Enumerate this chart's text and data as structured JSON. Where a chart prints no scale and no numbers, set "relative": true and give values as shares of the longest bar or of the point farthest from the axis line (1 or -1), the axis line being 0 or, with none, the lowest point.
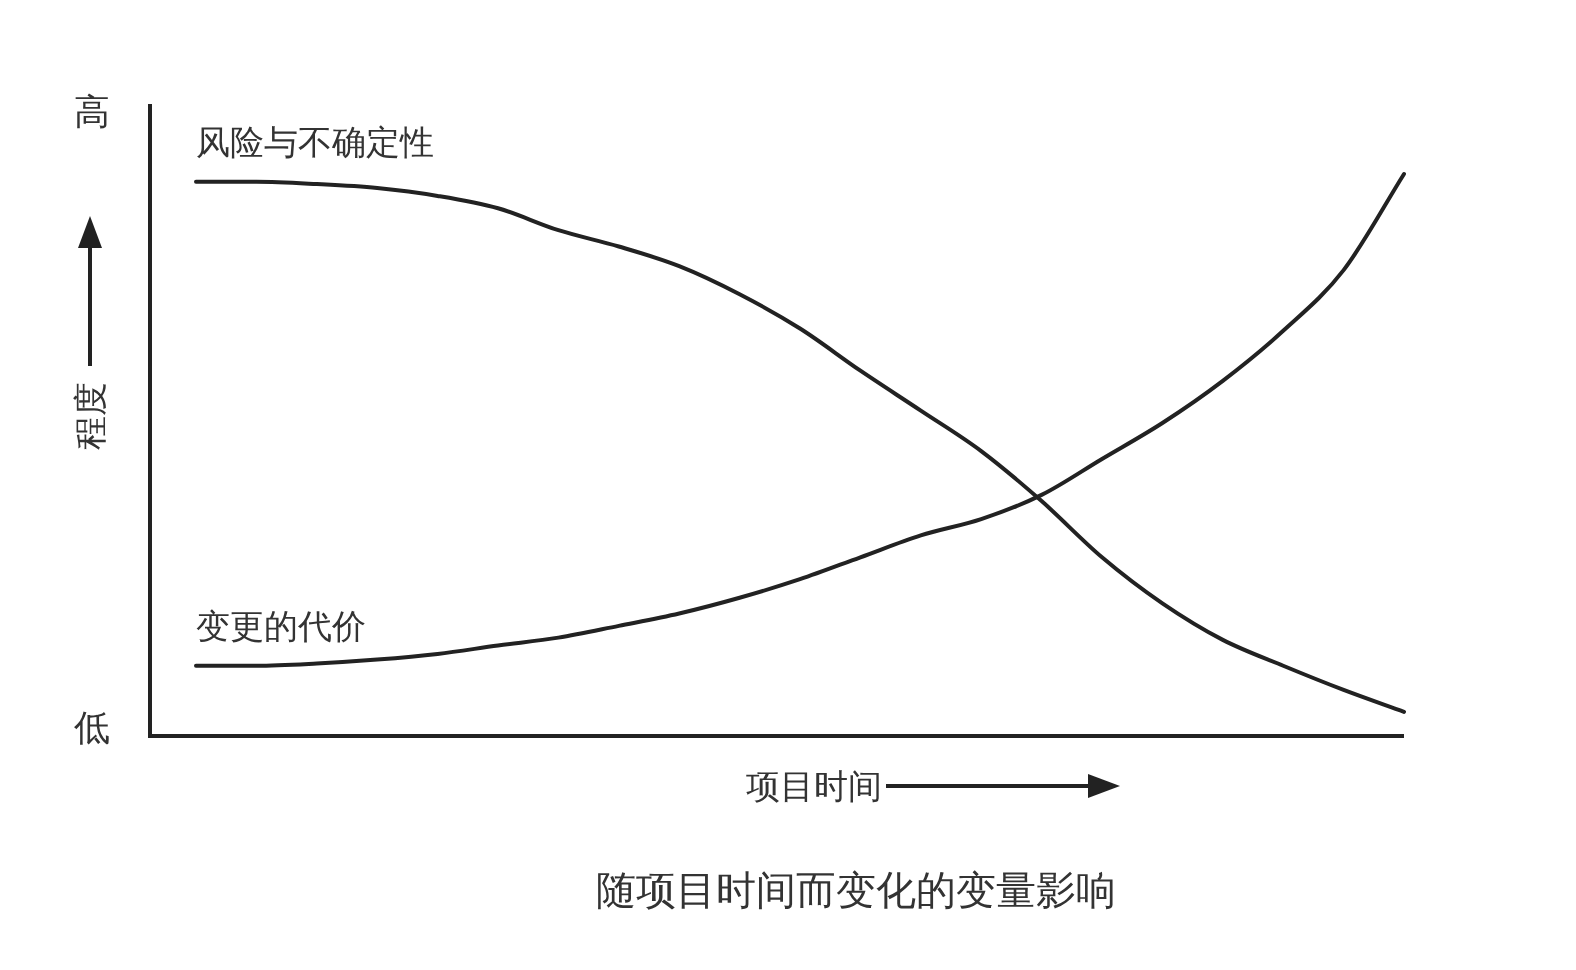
{
  "chart_data": {
    "type": "line",
    "title": "随项目时间而变化的变量影响",
    "xlabel": "项目时间",
    "ylabel": "程度",
    "annotations": [
      "高",
      "低"
    ],
    "relative": true,
    "categories": [
      null,
      null,
      null,
      null,
      null,
      null,
      null,
      null,
      null,
      null,
      null,
      null,
      null,
      null,
      null,
      null,
      null,
      null,
      null,
      null,
      null
    ],
    "series": [
      {
        "name": "风险与不确定性",
        "color": "#222222",
        "values": [
          0.986,
          0.986,
          0.982,
          0.975,
          0.961,
          0.939,
          0.9,
          0.871,
          0.836,
          0.786,
          0.725,
          0.65,
          0.579,
          0.507,
          0.418,
          0.318,
          0.236,
          0.171,
          0.125,
          0.082,
          0.043
        ]
      },
      {
        "name": "变更的代价",
        "color": "#222222",
        "values": [
          0.125,
          0.125,
          0.129,
          0.136,
          0.146,
          0.161,
          0.175,
          0.196,
          0.218,
          0.246,
          0.279,
          0.318,
          0.357,
          0.386,
          0.429,
          0.493,
          0.557,
          0.632,
          0.721,
          0.829,
          1
        ]
      }
    ]
  }
}
